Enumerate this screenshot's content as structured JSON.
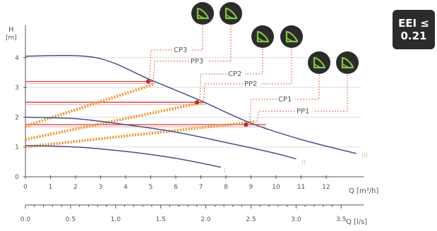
{
  "badge": {
    "line1": "EEI ≤",
    "line2": "0.21"
  },
  "icons": [
    {
      "name": "cp3-mode-icon",
      "glyph": "leaf-curve-icon"
    },
    {
      "name": "pp3-mode-icon",
      "glyph": "leaf-curve-icon"
    },
    {
      "name": "cp2-mode-icon",
      "glyph": "leaf-curve-icon"
    },
    {
      "name": "pp2-mode-icon",
      "glyph": "leaf-curve-icon"
    },
    {
      "name": "cp1-mode-icon",
      "glyph": "leaf-curve-icon"
    },
    {
      "name": "pp1-mode-icon",
      "glyph": "leaf-curve-icon"
    }
  ],
  "colors": {
    "icon_bg": "#2b2b2b",
    "icon_fg": "#86c540",
    "speed_curve": "#4a4f86",
    "cp_line": "#d94a4a",
    "pp_line": "#f0932b",
    "dot": "#c0282d",
    "grid": "#dddddd",
    "axis": "#555555",
    "mode_label": "#c7d9b0"
  },
  "chart_data": {
    "type": "line",
    "ylabel": "H",
    "yunit": "[m]",
    "xlabel": "Q [m³/h]",
    "x2label": "Q [l/s]",
    "xlim": [
      0,
      13
    ],
    "ylim": [
      0,
      4.5
    ],
    "xticks": [
      "0",
      "1",
      "2",
      "3",
      "4",
      "5",
      "6",
      "7",
      "8",
      "9",
      "10",
      "11",
      "12"
    ],
    "yticks": [
      "0",
      "1",
      "2",
      "3",
      "4"
    ],
    "x2ticks": [
      "0.0",
      "0.5",
      "1.0",
      "1.5",
      "2.0",
      "2.5",
      "3.0",
      "3.5"
    ],
    "speed_curves": [
      {
        "name": "III",
        "points": [
          [
            0,
            4.05
          ],
          [
            2.8,
            4.0
          ],
          [
            5,
            3.25
          ],
          [
            7,
            2.55
          ],
          [
            9,
            1.8
          ],
          [
            11,
            1.25
          ],
          [
            13.2,
            0.78
          ]
        ]
      },
      {
        "name": "II",
        "points": [
          [
            0,
            2.0
          ],
          [
            2,
            1.95
          ],
          [
            4,
            1.75
          ],
          [
            6,
            1.5
          ],
          [
            8,
            1.15
          ],
          [
            10,
            0.78
          ],
          [
            10.8,
            0.6
          ]
        ]
      },
      {
        "name": "I",
        "points": [
          [
            0,
            1.05
          ],
          [
            2,
            1.0
          ],
          [
            4,
            0.85
          ],
          [
            6,
            0.62
          ],
          [
            7.8,
            0.32
          ]
        ]
      }
    ],
    "cp_lines": [
      {
        "name": "CP3",
        "y": 3.2
      },
      {
        "name": "CP2",
        "y": 2.5
      },
      {
        "name": "CP1",
        "y": 1.75
      }
    ],
    "pp_lines": [
      {
        "name": "PP3",
        "points": [
          [
            0,
            1.7
          ],
          [
            5.1,
            3.1
          ]
        ]
      },
      {
        "name": "PP2",
        "points": [
          [
            0,
            1.25
          ],
          [
            7.1,
            2.5
          ]
        ]
      },
      {
        "name": "PP1",
        "points": [
          [
            0,
            1.0
          ],
          [
            9.2,
            1.85
          ]
        ]
      }
    ],
    "operating_points": [
      {
        "mode": "CP3",
        "x": 4.9,
        "y": 3.2
      },
      {
        "mode": "CP2",
        "x": 6.85,
        "y": 2.5
      },
      {
        "mode": "CP1",
        "x": 8.8,
        "y": 1.75
      }
    ],
    "labels": [
      "CP3",
      "PP3",
      "CP2",
      "PP2",
      "CP1",
      "PP1"
    ],
    "curve_labels": [
      "III",
      "II",
      "I"
    ]
  }
}
